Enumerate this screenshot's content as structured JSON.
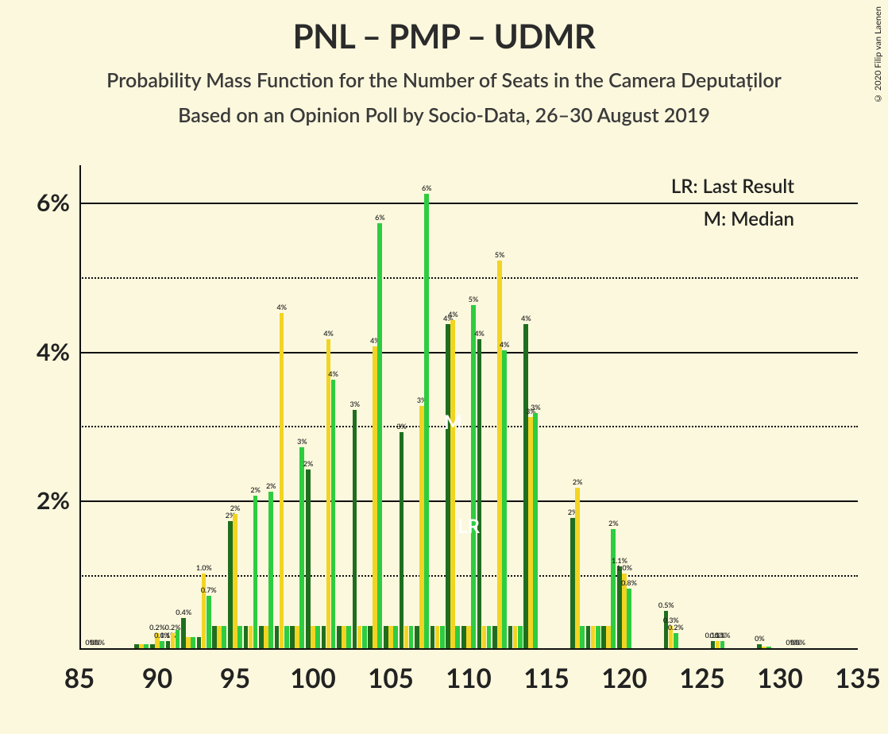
{
  "title": "PNL – PMP – UDMR",
  "subtitle1": "Probability Mass Function for the Number of Seats in the Camera Deputaților",
  "subtitle2": "Based on an Opinion Poll by Socio-Data, 26–30 August 2019",
  "copyright": "© 2020 Filip van Laenen",
  "legend": {
    "lr": "LR: Last Result",
    "m": "M: Median"
  },
  "chart": {
    "type": "bar",
    "background_color": "#fcf8dd",
    "series_colors": [
      "#1f6e1f",
      "#f2d423",
      "#2ecc40"
    ],
    "xmin": 85,
    "xmax": 135,
    "xtick_step": 5,
    "xticks": [
      85,
      90,
      95,
      100,
      105,
      110,
      115,
      120,
      125,
      130,
      135
    ],
    "ymin": 0,
    "ymax": 6.5,
    "ytick_step": 2,
    "yticks": [
      2,
      4,
      6
    ],
    "ygrid_minor": [
      1,
      3,
      5
    ],
    "bar_group_width": 0.92,
    "title_fontsize": 42,
    "subtitle_fontsize": 25,
    "axis_fontsize": 30,
    "barlabel_fontsize": 9,
    "lr_x": 110,
    "m_x": 109,
    "data": [
      {
        "x": 86,
        "v": [
          0,
          0,
          0
        ],
        "l": [
          "0%",
          "0%",
          "0%"
        ]
      },
      {
        "x": 89,
        "v": [
          0.05,
          0.05,
          0.05
        ],
        "l": [
          "",
          "",
          ""
        ]
      },
      {
        "x": 90,
        "v": [
          0.05,
          0.2,
          0.1
        ],
        "l": [
          "",
          "0.2%",
          "0.1%"
        ]
      },
      {
        "x": 91,
        "v": [
          0.1,
          0.2,
          0.25
        ],
        "l": [
          "0.1%",
          "0.2%",
          ""
        ]
      },
      {
        "x": 92,
        "v": [
          0.4,
          0.15,
          0.15
        ],
        "l": [
          "0.4%",
          "",
          ""
        ]
      },
      {
        "x": 93,
        "v": [
          0.15,
          1.0,
          0.7
        ],
        "l": [
          "",
          "1.0%",
          "0.7%"
        ]
      },
      {
        "x": 94,
        "v": [
          0.3,
          0.3,
          0.3
        ],
        "l": [
          "",
          "",
          ""
        ]
      },
      {
        "x": 95,
        "v": [
          1.7,
          1.8,
          0.3
        ],
        "l": [
          "2%",
          "2%",
          ""
        ]
      },
      {
        "x": 96,
        "v": [
          0.3,
          0.3,
          2.05
        ],
        "l": [
          "",
          "",
          "2%"
        ]
      },
      {
        "x": 97,
        "v": [
          0.3,
          0.3,
          2.1
        ],
        "l": [
          "",
          "",
          "2%"
        ]
      },
      {
        "x": 98,
        "v": [
          0.3,
          4.5,
          0.3
        ],
        "l": [
          "",
          "4%",
          ""
        ]
      },
      {
        "x": 99,
        "v": [
          0.3,
          0.3,
          2.7
        ],
        "l": [
          "",
          "",
          "3%"
        ]
      },
      {
        "x": 100,
        "v": [
          2.4,
          0.3,
          0.3
        ],
        "l": [
          "2%",
          "",
          ""
        ]
      },
      {
        "x": 101,
        "v": [
          0.3,
          4.15,
          3.6
        ],
        "l": [
          "",
          "4%",
          "4%"
        ]
      },
      {
        "x": 102,
        "v": [
          0.3,
          0.3,
          0.3
        ],
        "l": [
          "",
          "",
          ""
        ]
      },
      {
        "x": 103,
        "v": [
          3.2,
          0.3,
          0.3
        ],
        "l": [
          "3%",
          "",
          ""
        ]
      },
      {
        "x": 104,
        "v": [
          0.3,
          4.05,
          5.7
        ],
        "l": [
          "",
          "4%",
          "6%"
        ]
      },
      {
        "x": 105,
        "v": [
          0.3,
          0.3,
          0.3
        ],
        "l": [
          "",
          "",
          ""
        ]
      },
      {
        "x": 106,
        "v": [
          2.9,
          0.3,
          0.3
        ],
        "l": [
          "3%",
          "",
          ""
        ]
      },
      {
        "x": 107,
        "v": [
          0.3,
          3.25,
          6.1
        ],
        "l": [
          "",
          "3%",
          "6%"
        ]
      },
      {
        "x": 108,
        "v": [
          0.3,
          0.3,
          0.3
        ],
        "l": [
          "",
          "",
          ""
        ]
      },
      {
        "x": 109,
        "v": [
          4.35,
          4.4,
          0.3
        ],
        "l": [
          "4%",
          "4%",
          ""
        ]
      },
      {
        "x": 110,
        "v": [
          0.3,
          0.3,
          4.6
        ],
        "l": [
          "",
          "",
          "5%"
        ]
      },
      {
        "x": 111,
        "v": [
          4.15,
          0.3,
          0.3
        ],
        "l": [
          "4%",
          "",
          ""
        ]
      },
      {
        "x": 112,
        "v": [
          0.3,
          5.2,
          4.0
        ],
        "l": [
          "",
          "5%",
          "4%"
        ]
      },
      {
        "x": 113,
        "v": [
          0.3,
          0.3,
          0.3
        ],
        "l": [
          "",
          "",
          ""
        ]
      },
      {
        "x": 114,
        "v": [
          4.35,
          3.1,
          3.15
        ],
        "l": [
          "4%",
          "3%",
          "3%"
        ]
      },
      {
        "x": 117,
        "v": [
          1.75,
          2.15,
          0.3
        ],
        "l": [
          "2%",
          "2%",
          ""
        ]
      },
      {
        "x": 118,
        "v": [
          0.3,
          0.3,
          0.3
        ],
        "l": [
          "",
          "",
          ""
        ]
      },
      {
        "x": 119,
        "v": [
          0.3,
          0.3,
          1.6
        ],
        "l": [
          "",
          "",
          "2%"
        ]
      },
      {
        "x": 120,
        "v": [
          1.1,
          1.0,
          0.8
        ],
        "l": [
          "1.1%",
          "1.0%",
          "0.8%"
        ]
      },
      {
        "x": 123,
        "v": [
          0.5,
          0.3,
          0.2
        ],
        "l": [
          "0.5%",
          "0.3%",
          "0.2%"
        ]
      },
      {
        "x": 126,
        "v": [
          0.1,
          0.1,
          0.1
        ],
        "l": [
          "0.1%",
          "0.1%",
          "0.1%"
        ]
      },
      {
        "x": 129,
        "v": [
          0.05,
          0.02,
          0.02
        ],
        "l": [
          "0%",
          "",
          ""
        ]
      },
      {
        "x": 131,
        "v": [
          0,
          0,
          0
        ],
        "l": [
          "0%",
          "0%",
          "0%"
        ]
      }
    ]
  }
}
